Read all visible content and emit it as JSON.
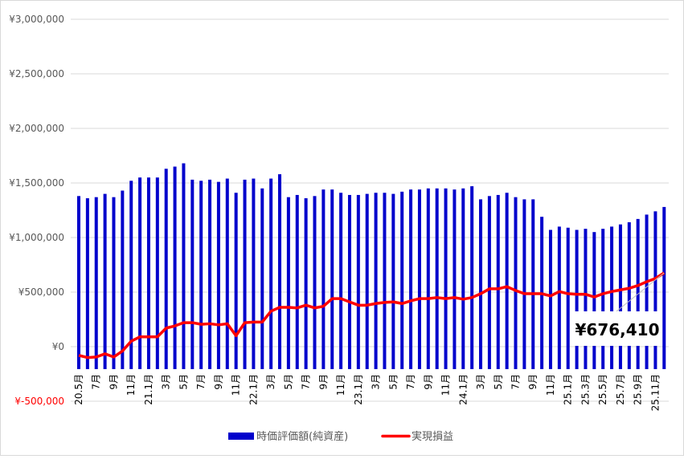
{
  "chart_data": {
    "type": "bar+line",
    "title": "",
    "xlabel": "",
    "ylabel": "",
    "ylim": [
      -500000,
      3000000
    ],
    "grid": true,
    "legend_position": "bottom",
    "y_ticks": [
      {
        "value": 3000000,
        "label": "¥3,000,000"
      },
      {
        "value": 2500000,
        "label": "¥2,500,000"
      },
      {
        "value": 2000000,
        "label": "¥2,000,000"
      },
      {
        "value": 1500000,
        "label": "¥1,500,000"
      },
      {
        "value": 1000000,
        "label": "¥1,000,000"
      },
      {
        "value": 500000,
        "label": "¥500,000"
      },
      {
        "value": 0,
        "label": "¥0"
      },
      {
        "value": -500000,
        "label": "¥-500,000"
      }
    ],
    "negative_tick_color": "#ff0000",
    "x_tick_labels": [
      "20.5月",
      "7月",
      "9月",
      "11月",
      "21.1月",
      "3月",
      "5月",
      "7月",
      "9月",
      "11月",
      "22.1月",
      "3月",
      "5月",
      "7月",
      "9月",
      "11月",
      "23.1月",
      "3月",
      "5月",
      "7月",
      "9月",
      "11月",
      "24.1月",
      "3月",
      "5月",
      "7月",
      "9月",
      "11月",
      "25.1月",
      "25.3月",
      "25.5月",
      "25.7月",
      "25.9月",
      "25.11月"
    ],
    "series": [
      {
        "name": "時価評価額(純資産)",
        "type": "bar",
        "color": "#0000cc",
        "values": [
          1380000,
          1360000,
          1370000,
          1400000,
          1370000,
          1430000,
          1520000,
          1550000,
          1550000,
          1550000,
          1630000,
          1650000,
          1680000,
          1530000,
          1520000,
          1530000,
          1510000,
          1540000,
          1410000,
          1530000,
          1540000,
          1450000,
          1540000,
          1580000,
          1370000,
          1390000,
          1360000,
          1380000,
          1440000,
          1440000,
          1410000,
          1390000,
          1390000,
          1400000,
          1410000,
          1410000,
          1400000,
          1420000,
          1440000,
          1440000,
          1450000,
          1450000,
          1450000,
          1440000,
          1450000,
          1470000,
          1350000,
          1380000,
          1390000,
          1410000,
          1370000,
          1350000,
          1350000,
          1190000,
          1070000,
          1100000,
          1090000,
          1070000,
          1080000,
          1050000,
          1080000,
          1100000,
          1120000,
          1140000,
          1170000,
          1210000,
          1240000,
          1280000
        ]
      },
      {
        "name": "実現損益",
        "type": "line",
        "color": "#ff0000",
        "values": [
          -80000,
          -100000,
          -95000,
          -65000,
          -95000,
          -40000,
          50000,
          90000,
          90000,
          90000,
          170000,
          190000,
          220000,
          220000,
          205000,
          210000,
          200000,
          210000,
          100000,
          220000,
          225000,
          225000,
          325000,
          360000,
          360000,
          355000,
          380000,
          355000,
          370000,
          440000,
          440000,
          410000,
          380000,
          380000,
          395000,
          405000,
          410000,
          395000,
          420000,
          440000,
          440000,
          450000,
          440000,
          450000,
          435000,
          450000,
          485000,
          530000,
          530000,
          550000,
          515000,
          485000,
          485000,
          485000,
          465000,
          505000,
          485000,
          480000,
          480000,
          455000,
          485000,
          505000,
          520000,
          535000,
          560000,
          595000,
          625000,
          676410
        ]
      }
    ],
    "annotation": "¥676,410"
  }
}
